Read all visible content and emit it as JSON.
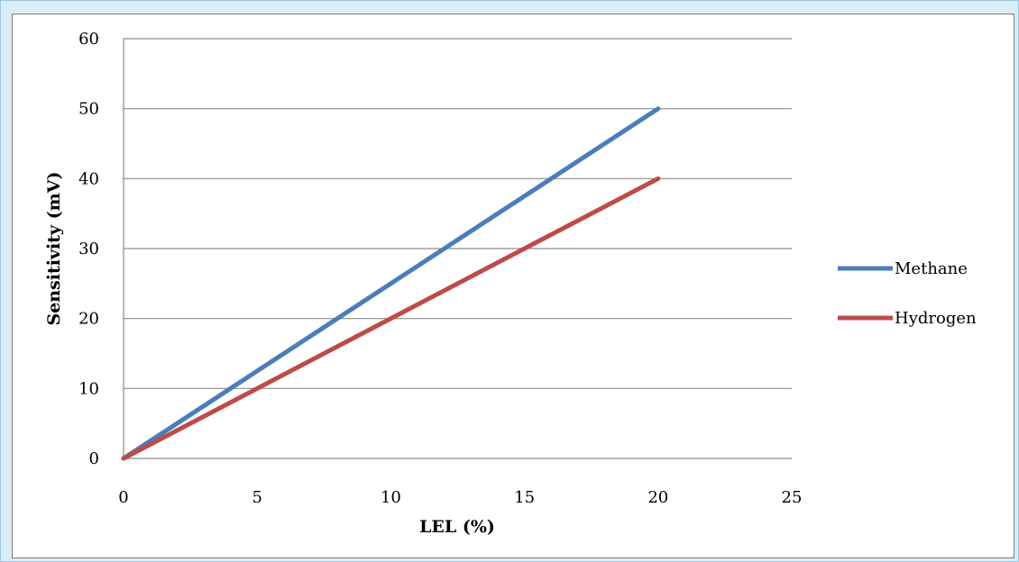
{
  "chart_data": {
    "type": "line",
    "title": "",
    "xlabel": "LEL (%)",
    "ylabel": "Sensitivity (mV)",
    "xlim": [
      0,
      25
    ],
    "ylim": [
      0,
      60
    ],
    "xticks": [
      0,
      5,
      10,
      15,
      20,
      25
    ],
    "yticks": [
      0,
      10,
      20,
      30,
      40,
      50,
      60
    ],
    "grid": "horizontal",
    "legend_position": "right",
    "series": [
      {
        "name": "Methane",
        "color": "#4a7ebb",
        "x": [
          0,
          20
        ],
        "y": [
          0,
          50
        ]
      },
      {
        "name": "Hydrogen",
        "color": "#be4b48",
        "x": [
          0,
          20
        ],
        "y": [
          0,
          40
        ]
      }
    ]
  }
}
